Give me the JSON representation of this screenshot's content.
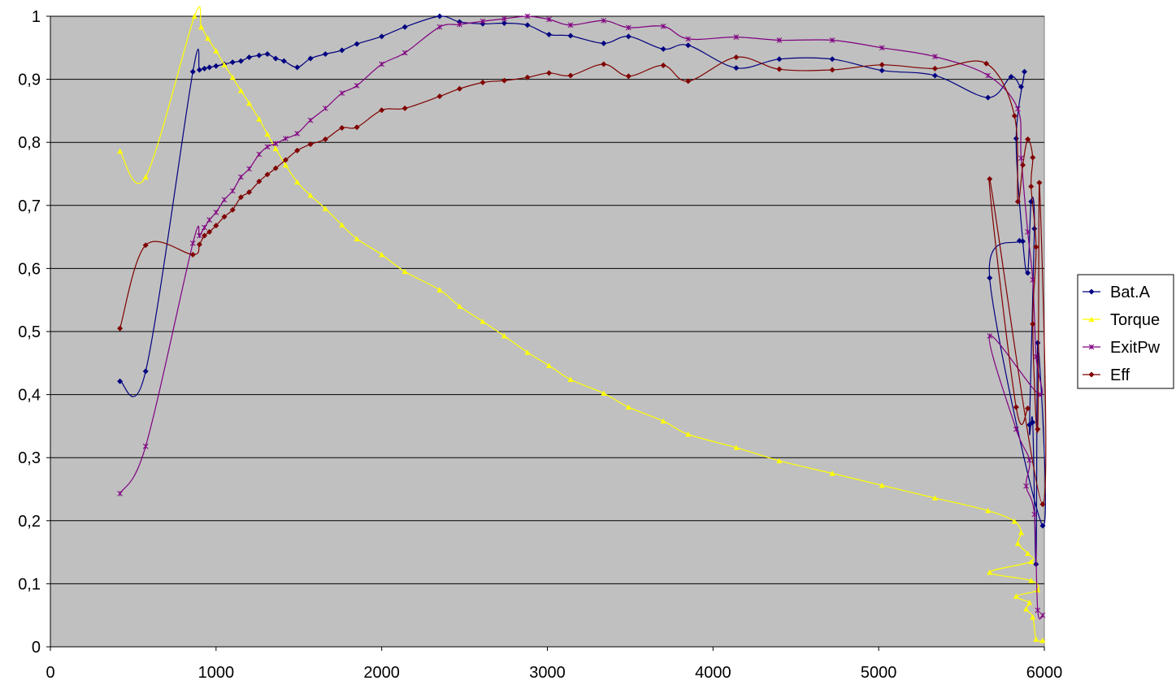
{
  "chart_data": {
    "type": "line",
    "title": "",
    "xlabel": "",
    "ylabel": "",
    "xlim": [
      0,
      6000
    ],
    "ylim": [
      0,
      1
    ],
    "x_ticks": [
      0,
      1000,
      2000,
      3000,
      4000,
      5000,
      6000
    ],
    "y_ticks": [
      "0",
      "0,1",
      "0,2",
      "0,3",
      "0,4",
      "0,5",
      "0,6",
      "0,7",
      "0,8",
      "0,9",
      "1"
    ],
    "y_tick_values": [
      0,
      0.1,
      0.2,
      0.3,
      0.4,
      0.5,
      0.6,
      0.7,
      0.8,
      0.9,
      1.0
    ],
    "grid": "horizontal",
    "plot_background": "#c0c0c0",
    "legend_position": "right",
    "series": [
      {
        "name": "Bat.A",
        "color": "#000080",
        "marker": "diamond",
        "points": [
          [
            420,
            0.421
          ],
          [
            575,
            0.437
          ],
          [
            860,
            0.912
          ],
          [
            900,
            0.915
          ],
          [
            930,
            0.917
          ],
          [
            960,
            0.919
          ],
          [
            1000,
            0.921
          ],
          [
            1050,
            0.924
          ],
          [
            1100,
            0.927
          ],
          [
            1150,
            0.929
          ],
          [
            1200,
            0.935
          ],
          [
            1260,
            0.938
          ],
          [
            1310,
            0.94
          ],
          [
            1360,
            0.933
          ],
          [
            1410,
            0.929
          ],
          [
            1490,
            0.919
          ],
          [
            1570,
            0.933
          ],
          [
            1660,
            0.94
          ],
          [
            1760,
            0.946
          ],
          [
            1850,
            0.956
          ],
          [
            2000,
            0.968
          ],
          [
            2140,
            0.983
          ],
          [
            2350,
            1.0
          ],
          [
            2470,
            0.991
          ],
          [
            2610,
            0.988
          ],
          [
            2740,
            0.989
          ],
          [
            2880,
            0.986
          ],
          [
            3010,
            0.971
          ],
          [
            3140,
            0.969
          ],
          [
            3340,
            0.957
          ],
          [
            3490,
            0.968
          ],
          [
            3700,
            0.948
          ],
          [
            3850,
            0.954
          ],
          [
            4140,
            0.918
          ],
          [
            4400,
            0.932
          ],
          [
            4720,
            0.932
          ],
          [
            5020,
            0.914
          ],
          [
            5340,
            0.906
          ],
          [
            5660,
            0.871
          ],
          [
            5800,
            0.904
          ],
          [
            5860,
            0.888
          ],
          [
            5880,
            0.912
          ],
          [
            5830,
            0.806
          ],
          [
            5870,
            0.643
          ],
          [
            5900,
            0.593
          ],
          [
            5920,
            0.706
          ],
          [
            5940,
            0.663
          ],
          [
            5910,
            0.352
          ],
          [
            5930,
            0.356
          ],
          [
            5950,
            0.131
          ],
          [
            5960,
            0.482
          ],
          [
            5990,
            0.192
          ],
          [
            5670,
            0.585
          ],
          [
            5850,
            0.644
          ]
        ]
      },
      {
        "name": "Torque",
        "color": "#ffff00",
        "marker": "triangle",
        "points": [
          [
            420,
            0.786
          ],
          [
            575,
            0.745
          ],
          [
            870,
            1.0
          ],
          [
            910,
            0.983
          ],
          [
            950,
            0.965
          ],
          [
            1000,
            0.945
          ],
          [
            1050,
            0.923
          ],
          [
            1100,
            0.903
          ],
          [
            1150,
            0.882
          ],
          [
            1200,
            0.862
          ],
          [
            1260,
            0.837
          ],
          [
            1310,
            0.813
          ],
          [
            1360,
            0.79
          ],
          [
            1420,
            0.764
          ],
          [
            1490,
            0.737
          ],
          [
            1570,
            0.716
          ],
          [
            1660,
            0.695
          ],
          [
            1760,
            0.669
          ],
          [
            1850,
            0.647
          ],
          [
            2000,
            0.622
          ],
          [
            2140,
            0.595
          ],
          [
            2350,
            0.566
          ],
          [
            2470,
            0.54
          ],
          [
            2610,
            0.516
          ],
          [
            2740,
            0.493
          ],
          [
            2880,
            0.467
          ],
          [
            3010,
            0.446
          ],
          [
            3140,
            0.424
          ],
          [
            3340,
            0.402
          ],
          [
            3490,
            0.38
          ],
          [
            3700,
            0.358
          ],
          [
            3850,
            0.337
          ],
          [
            4140,
            0.316
          ],
          [
            4400,
            0.295
          ],
          [
            4720,
            0.275
          ],
          [
            5020,
            0.256
          ],
          [
            5340,
            0.236
          ],
          [
            5660,
            0.216
          ],
          [
            5820,
            0.199
          ],
          [
            5860,
            0.181
          ],
          [
            5840,
            0.164
          ],
          [
            5900,
            0.148
          ],
          [
            5920,
            0.135
          ],
          [
            5670,
            0.118
          ],
          [
            5920,
            0.105
          ],
          [
            5960,
            0.09
          ],
          [
            5830,
            0.08
          ],
          [
            5910,
            0.07
          ],
          [
            5890,
            0.06
          ],
          [
            5930,
            0.047
          ],
          [
            5950,
            0.012
          ],
          [
            5990,
            0.01
          ]
        ]
      },
      {
        "name": "ExitPw",
        "color": "#800080",
        "marker": "star",
        "points": [
          [
            420,
            0.243
          ],
          [
            575,
            0.318
          ],
          [
            860,
            0.64
          ],
          [
            900,
            0.652
          ],
          [
            930,
            0.665
          ],
          [
            960,
            0.677
          ],
          [
            1000,
            0.689
          ],
          [
            1050,
            0.709
          ],
          [
            1100,
            0.723
          ],
          [
            1150,
            0.745
          ],
          [
            1200,
            0.758
          ],
          [
            1260,
            0.781
          ],
          [
            1310,
            0.793
          ],
          [
            1360,
            0.798
          ],
          [
            1420,
            0.806
          ],
          [
            1490,
            0.814
          ],
          [
            1570,
            0.835
          ],
          [
            1660,
            0.854
          ],
          [
            1760,
            0.878
          ],
          [
            1850,
            0.89
          ],
          [
            2000,
            0.924
          ],
          [
            2140,
            0.942
          ],
          [
            2350,
            0.983
          ],
          [
            2470,
            0.987
          ],
          [
            2610,
            0.992
          ],
          [
            2740,
            0.996
          ],
          [
            2880,
            1.0
          ],
          [
            3010,
            0.995
          ],
          [
            3140,
            0.986
          ],
          [
            3340,
            0.993
          ],
          [
            3490,
            0.982
          ],
          [
            3700,
            0.984
          ],
          [
            3850,
            0.964
          ],
          [
            4140,
            0.967
          ],
          [
            4400,
            0.962
          ],
          [
            4720,
            0.962
          ],
          [
            5020,
            0.95
          ],
          [
            5340,
            0.936
          ],
          [
            5660,
            0.906
          ],
          [
            5840,
            0.853
          ],
          [
            5860,
            0.775
          ],
          [
            5900,
            0.658
          ],
          [
            5930,
            0.582
          ],
          [
            5950,
            0.46
          ],
          [
            5970,
            0.4
          ],
          [
            5670,
            0.493
          ],
          [
            5830,
            0.345
          ],
          [
            5910,
            0.296
          ],
          [
            5890,
            0.255
          ],
          [
            5940,
            0.21
          ],
          [
            5960,
            0.058
          ],
          [
            5990,
            0.05
          ]
        ]
      },
      {
        "name": "Eff",
        "color": "#800000",
        "marker": "diamond",
        "points": [
          [
            420,
            0.505
          ],
          [
            575,
            0.637
          ],
          [
            860,
            0.622
          ],
          [
            900,
            0.638
          ],
          [
            930,
            0.652
          ],
          [
            960,
            0.658
          ],
          [
            1000,
            0.668
          ],
          [
            1050,
            0.682
          ],
          [
            1100,
            0.693
          ],
          [
            1150,
            0.713
          ],
          [
            1200,
            0.721
          ],
          [
            1260,
            0.738
          ],
          [
            1310,
            0.749
          ],
          [
            1360,
            0.759
          ],
          [
            1420,
            0.772
          ],
          [
            1490,
            0.787
          ],
          [
            1570,
            0.797
          ],
          [
            1660,
            0.805
          ],
          [
            1760,
            0.823
          ],
          [
            1850,
            0.824
          ],
          [
            2000,
            0.851
          ],
          [
            2140,
            0.854
          ],
          [
            2350,
            0.873
          ],
          [
            2470,
            0.885
          ],
          [
            2610,
            0.895
          ],
          [
            2740,
            0.898
          ],
          [
            2880,
            0.903
          ],
          [
            3010,
            0.91
          ],
          [
            3140,
            0.906
          ],
          [
            3340,
            0.924
          ],
          [
            3490,
            0.905
          ],
          [
            3700,
            0.922
          ],
          [
            3850,
            0.897
          ],
          [
            4140,
            0.935
          ],
          [
            4400,
            0.916
          ],
          [
            4720,
            0.915
          ],
          [
            5020,
            0.923
          ],
          [
            5340,
            0.917
          ],
          [
            5650,
            0.925
          ],
          [
            5820,
            0.842
          ],
          [
            5840,
            0.706
          ],
          [
            5870,
            0.764
          ],
          [
            5900,
            0.805
          ],
          [
            5930,
            0.776
          ],
          [
            5920,
            0.73
          ],
          [
            5950,
            0.634
          ],
          [
            5930,
            0.512
          ],
          [
            5960,
            0.345
          ],
          [
            5970,
            0.736
          ],
          [
            5990,
            0.226
          ],
          [
            5670,
            0.742
          ],
          [
            5830,
            0.38
          ],
          [
            5900,
            0.378
          ]
        ]
      }
    ]
  },
  "legend": {
    "items": [
      "Bat.A",
      "Torque",
      "ExitPw",
      "Eff"
    ]
  }
}
